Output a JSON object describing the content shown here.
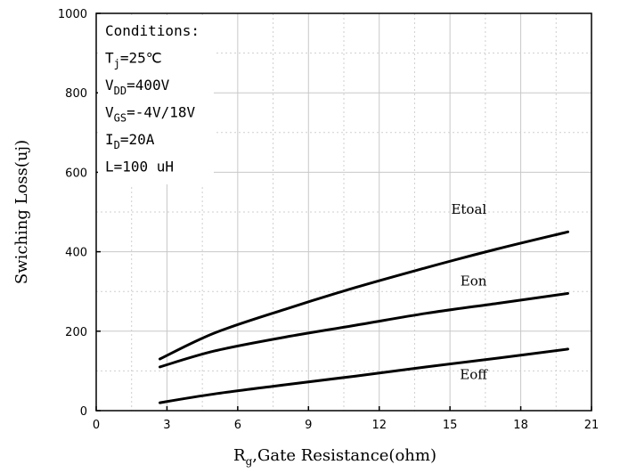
{
  "chart_data": {
    "type": "line",
    "xlabel_main": "R",
    "xlabel_sub": "g",
    "xlabel_rest": ",Gate Resistance(ohm)",
    "ylabel": "Swiching Loss(uj)",
    "xlim": [
      0,
      21
    ],
    "ylim": [
      0,
      1000
    ],
    "xticks": [
      0,
      3,
      6,
      9,
      12,
      15,
      18,
      21
    ],
    "yticks": [
      0,
      200,
      400,
      600,
      800,
      1000
    ],
    "grid": true,
    "conditions": [
      {
        "main": "Conditions:",
        "sub": "",
        "rest": ""
      },
      {
        "main": "T",
        "sub": "j",
        "rest": "=25℃"
      },
      {
        "main": "V",
        "sub": "DD",
        "rest": "=400V"
      },
      {
        "main": "V",
        "sub": "GS",
        "rest": "=-4V/18V"
      },
      {
        "main": "I",
        "sub": "D",
        "rest": "=20A"
      },
      {
        "main": "L=100 uH",
        "sub": "",
        "rest": ""
      }
    ],
    "series": [
      {
        "name": "Etoal",
        "x": [
          2.7,
          5,
          8,
          11,
          14,
          17,
          20
        ],
        "y": [
          130,
          195,
          255,
          310,
          360,
          407,
          450
        ]
      },
      {
        "name": "Eon",
        "x": [
          2.7,
          5,
          8,
          11,
          14,
          17,
          20
        ],
        "y": [
          110,
          150,
          185,
          215,
          245,
          270,
          295
        ]
      },
      {
        "name": "Eoff",
        "x": [
          2.7,
          5,
          8,
          11,
          14,
          17,
          20
        ],
        "y": [
          20,
          42,
          65,
          87,
          110,
          132,
          155
        ]
      }
    ]
  }
}
